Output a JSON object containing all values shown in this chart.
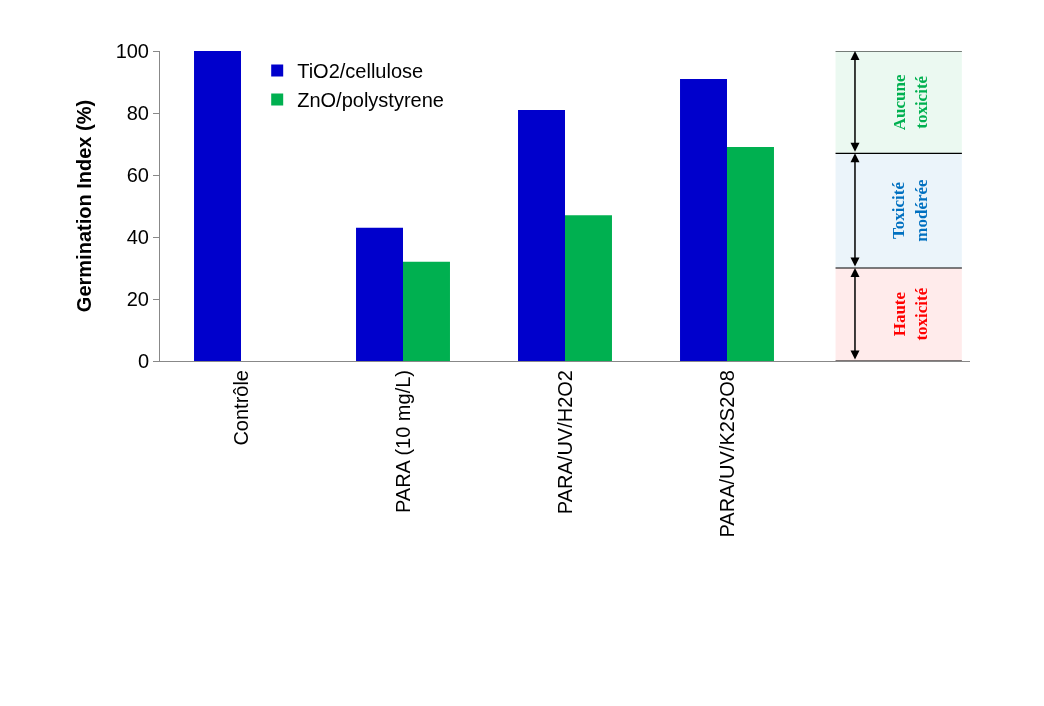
{
  "chart_data": {
    "type": "bar",
    "ylabel": "Germination Index (%)",
    "categories": [
      "Contrôle",
      "PARA (10 mg/L)",
      "PARA/UV/H2O2",
      "PARA/UV/K2S2O8",
      null
    ],
    "series": [
      {
        "name": "TiO2/cellulose",
        "color": "#0000cc",
        "values": [
          100,
          43,
          81,
          91,
          null
        ]
      },
      {
        "name": "ZnO/polystyrene",
        "color": "#00b050",
        "values": [
          null,
          32,
          47,
          69,
          null
        ]
      }
    ],
    "ylim": [
      0,
      100
    ],
    "yticks": [
      0,
      20,
      40,
      60,
      80,
      100
    ],
    "grid": false,
    "legend": "top left",
    "ref_lines": [
      {
        "axis": "y",
        "value": 100,
        "color": "#000000"
      },
      {
        "axis": "y",
        "value": 67,
        "color": "#000000"
      },
      {
        "axis": "y",
        "value": 30,
        "color": "#000000"
      },
      {
        "axis": "y",
        "value": 0,
        "color": "#000000"
      }
    ],
    "bands": [
      {
        "axis": "y",
        "from": 67,
        "to": 100,
        "label": "Aucune toxicité",
        "color": "#00b050"
      },
      {
        "axis": "y",
        "from": 30,
        "to": 67,
        "label": "Toxicité modérée",
        "color": "#0070c0"
      },
      {
        "axis": "y",
        "from": 0,
        "to": 30,
        "label": "Haute toxicité",
        "color": "#ff0000"
      }
    ]
  }
}
